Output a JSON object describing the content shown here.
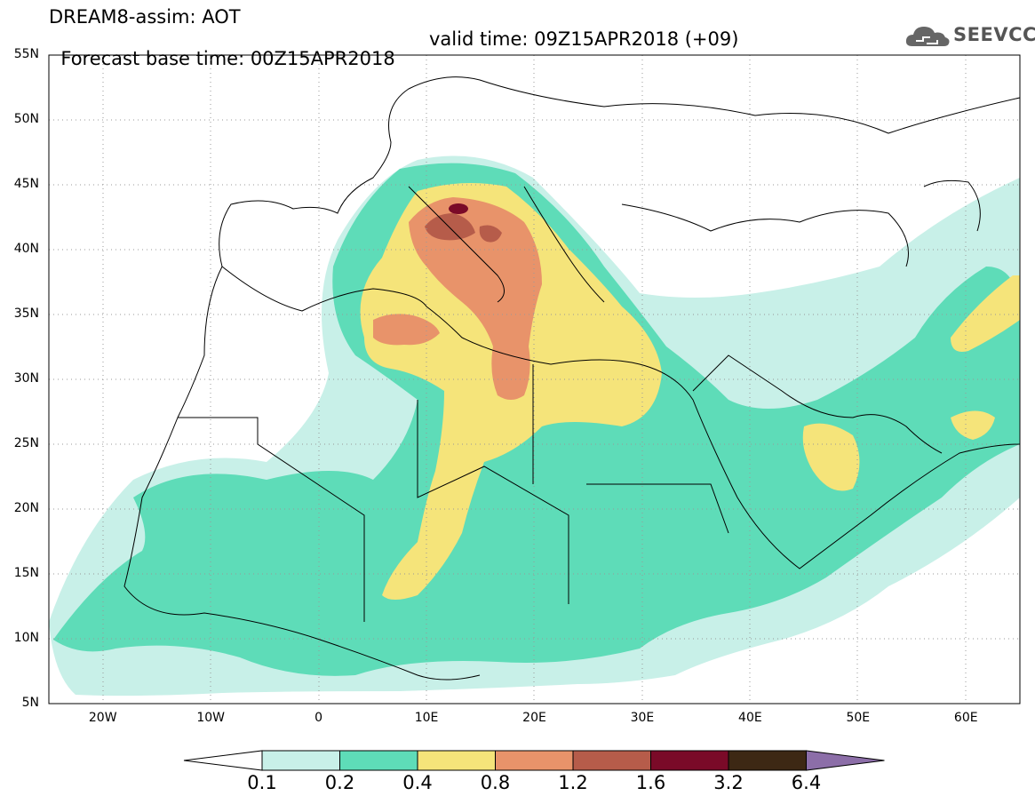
{
  "title": {
    "line1": "DREAM8-assim: AOT",
    "base": "Forecast base time: 00Z15APR2018",
    "valid": "valid time: 09Z15APR2018 (+09)"
  },
  "logo": {
    "text": "SEEVCCC",
    "icon": "cloud-icon"
  },
  "map": {
    "extent": {
      "lon_min": -25,
      "lon_max": 65,
      "lat_min": 5,
      "lat_max": 55
    },
    "lat_ticks": [
      "55N",
      "50N",
      "45N",
      "40N",
      "35N",
      "30N",
      "25N",
      "20N",
      "15N",
      "10N",
      "5N"
    ],
    "lon_ticks": [
      "20W",
      "10W",
      "0",
      "10E",
      "20E",
      "30E",
      "40E",
      "50E",
      "60E"
    ],
    "gridlines": "dotted"
  },
  "legend": {
    "labels": [
      "0.1",
      "0.2",
      "0.4",
      "0.8",
      "1.2",
      "1.6",
      "3.2",
      "6.4"
    ],
    "colors": [
      "#ffffff",
      "#c8f0e8",
      "#5edcb8",
      "#f5e47a",
      "#e8936a",
      "#b65c4a",
      "#7a0a28",
      "#3d2814",
      "#8c6ea8"
    ]
  }
}
